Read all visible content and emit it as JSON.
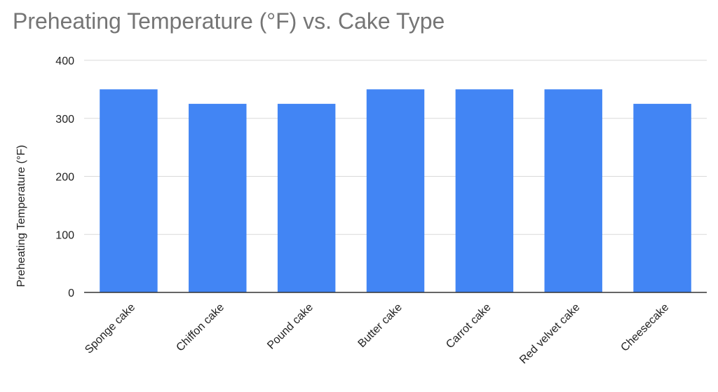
{
  "chart_data": {
    "type": "bar",
    "title": "Preheating Temperature (°F) vs. Cake Type",
    "xlabel": "",
    "ylabel": "Preheating Temperature (°F)",
    "categories": [
      "Sponge cake",
      "Chiffon cake",
      "Pound cake",
      "Butter cake",
      "Carrot cake",
      "Red velvet cake",
      "Cheesecake"
    ],
    "series": [
      {
        "values": [
          350,
          325,
          325,
          350,
          350,
          350,
          325
        ]
      }
    ],
    "ylim": [
      0,
      400
    ],
    "yticks": [
      0,
      100,
      200,
      300,
      400
    ],
    "grid": true,
    "legend": "none",
    "colors": {
      "bar": "#4285f4",
      "grid": "#d9d9d9",
      "axis": "#333333",
      "title": "#757575",
      "text": "#222222"
    }
  }
}
